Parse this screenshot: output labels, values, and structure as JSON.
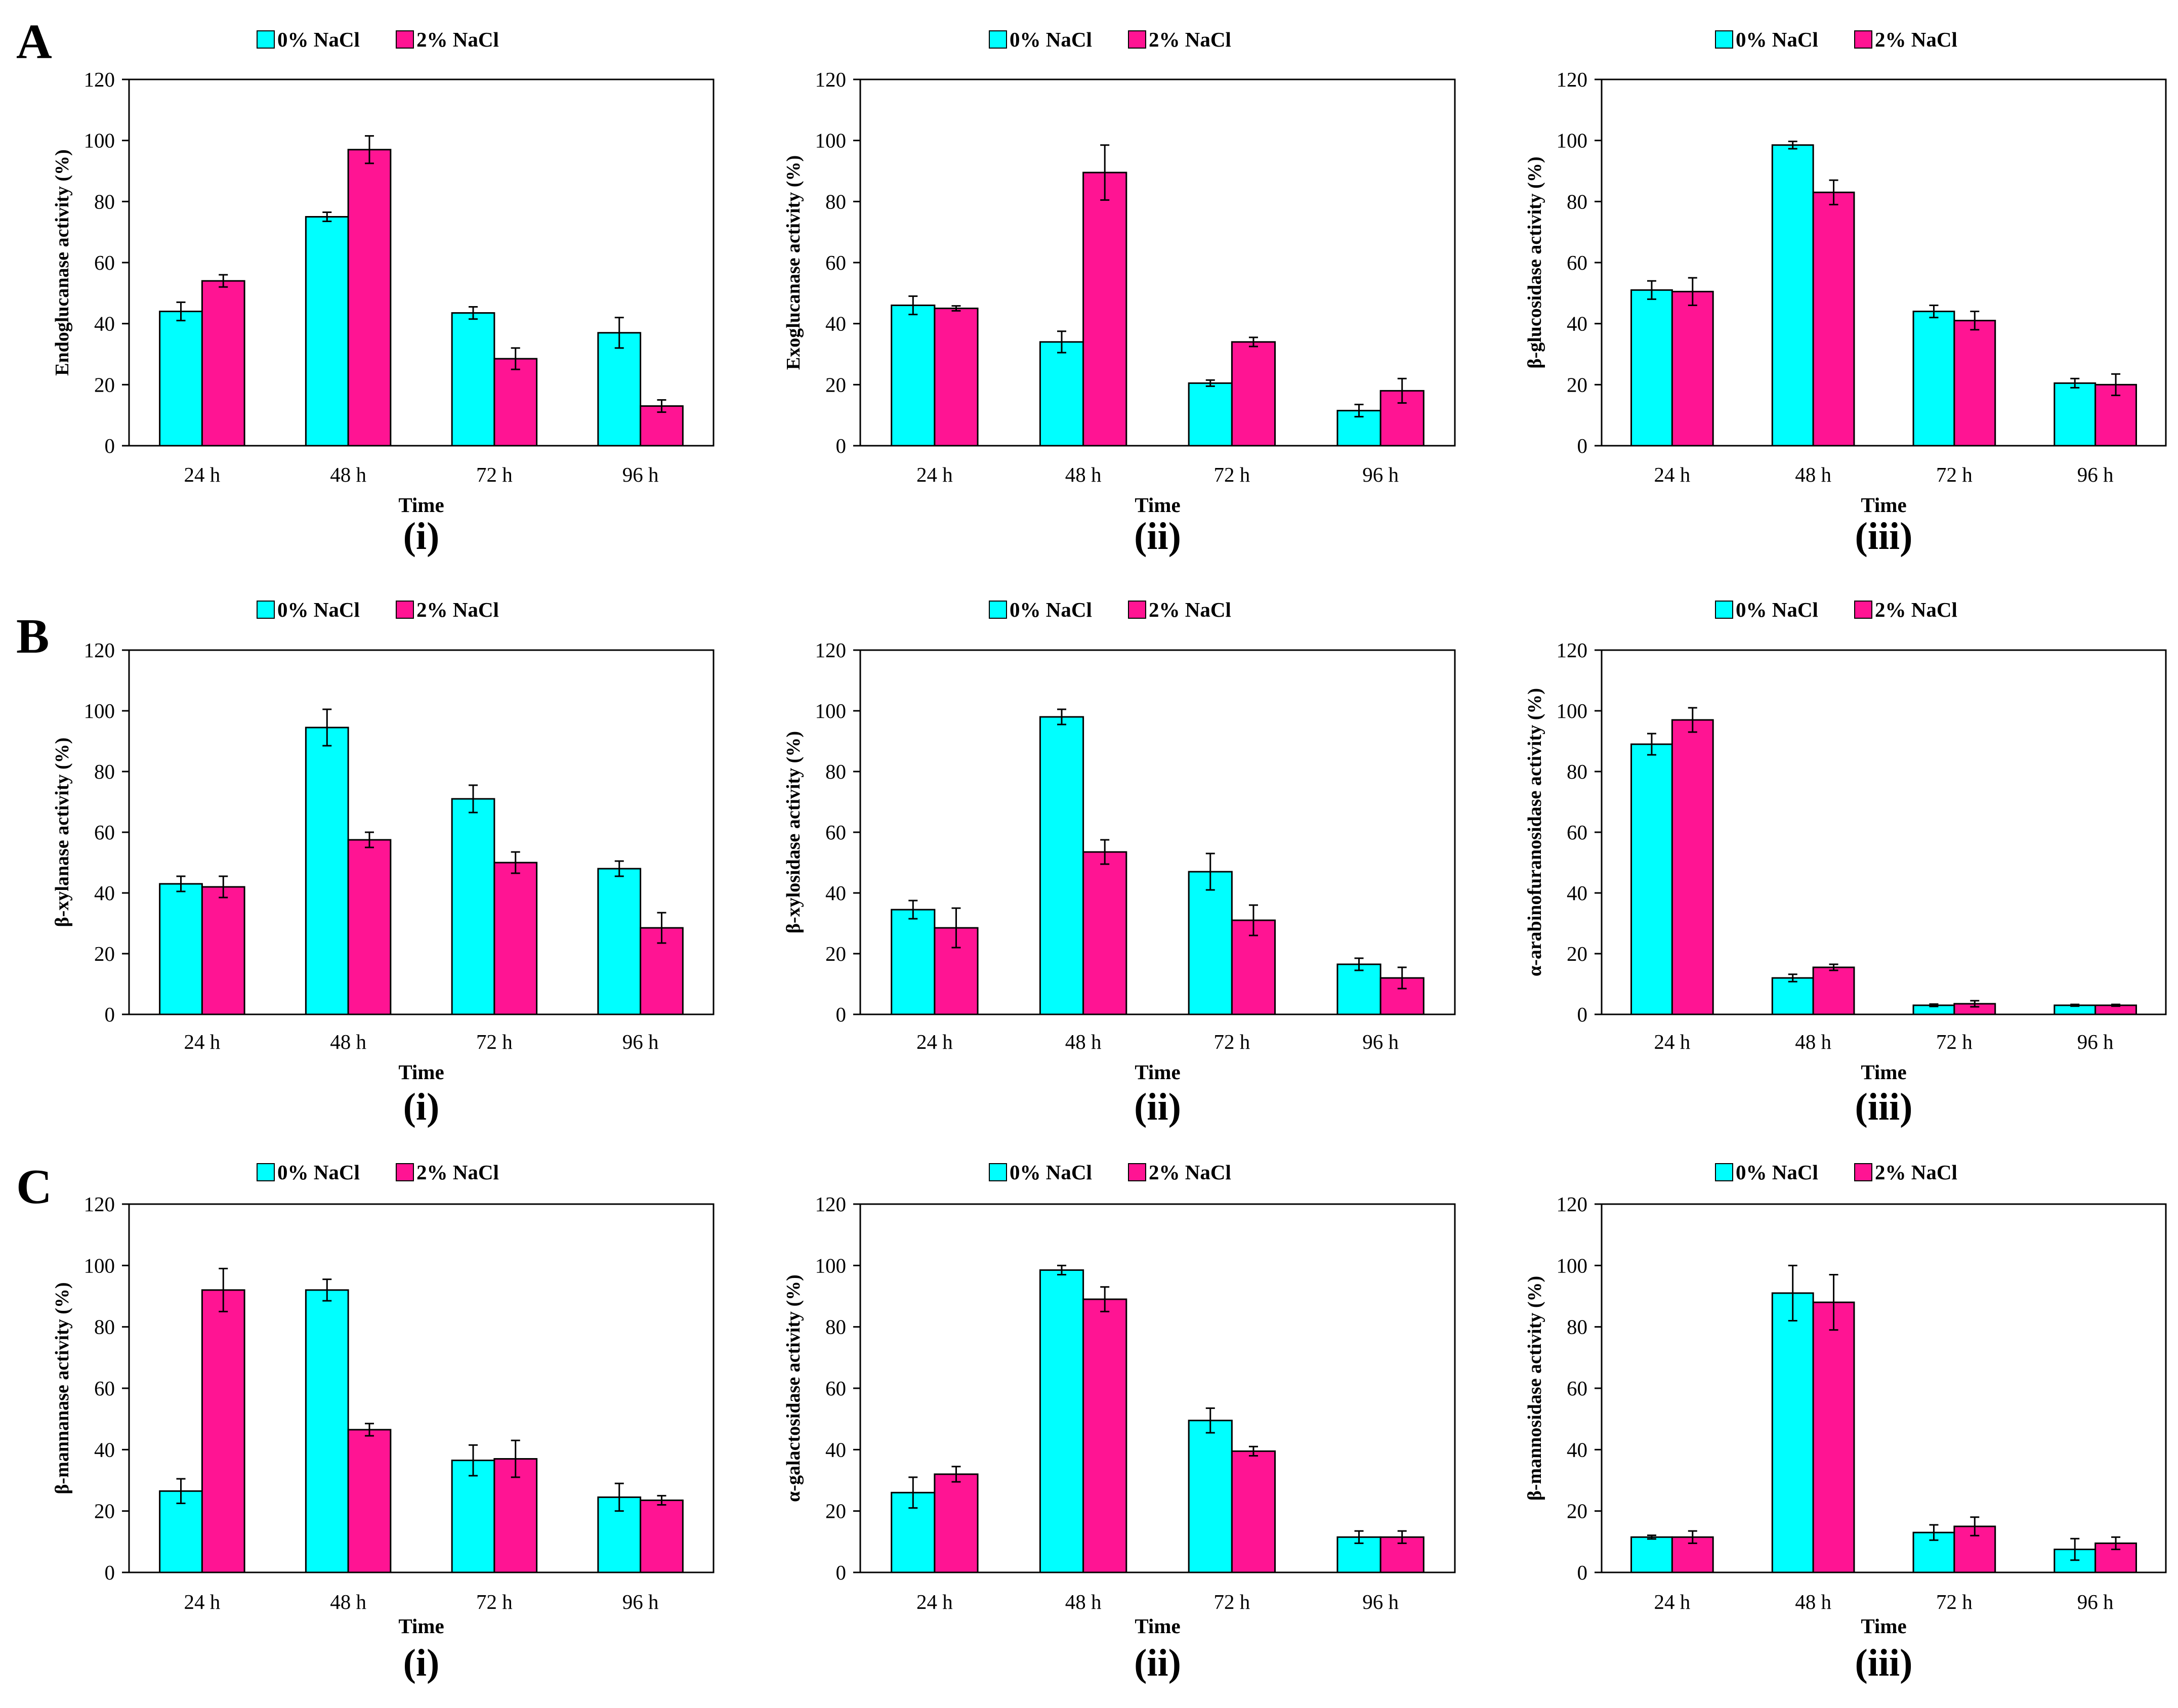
{
  "legend_labels": [
    "0% NaCl",
    "2% NaCl"
  ],
  "colors": {
    "no_salt": "#00FFFF",
    "salt": "#FF1493",
    "bar_outline": "#000000",
    "axis": "#000000"
  },
  "chart_data": [
    {
      "type": "bar",
      "section": "A",
      "panel_label": "(i)",
      "ylabel": "Endoglucanase activity (%)",
      "xlabel": "Time",
      "categories": [
        "24 h",
        "48 h",
        "72 h",
        "96 h"
      ],
      "ylim": [
        0,
        120
      ],
      "yticks": [
        0,
        20,
        40,
        60,
        80,
        100,
        120
      ],
      "series": [
        {
          "name": "0% NaCl",
          "values": [
            44,
            75,
            43.5,
            37
          ],
          "errors": [
            3,
            1.5,
            2,
            5
          ]
        },
        {
          "name": "2% NaCl",
          "values": [
            54,
            97,
            28.5,
            13
          ],
          "errors": [
            2,
            4.5,
            3.5,
            2
          ]
        }
      ]
    },
    {
      "type": "bar",
      "section": "",
      "panel_label": "(ii)",
      "ylabel": "Exoglucanase activity (%)",
      "xlabel": "Time",
      "categories": [
        "24 h",
        "48 h",
        "72 h",
        "96 h"
      ],
      "ylim": [
        0,
        120
      ],
      "yticks": [
        0,
        20,
        40,
        60,
        80,
        100,
        120
      ],
      "series": [
        {
          "name": "0% NaCl",
          "values": [
            46,
            34,
            20.5,
            11.5
          ],
          "errors": [
            3,
            3.5,
            1,
            2
          ]
        },
        {
          "name": "2% NaCl",
          "values": [
            45,
            89.5,
            34,
            18
          ],
          "errors": [
            0.8,
            9,
            1.5,
            4
          ]
        }
      ]
    },
    {
      "type": "bar",
      "section": "",
      "panel_label": "(iii)",
      "ylabel": "β-glucosidase activity (%)",
      "xlabel": "Time",
      "categories": [
        "24 h",
        "48 h",
        "72 h",
        "96 h"
      ],
      "ylim": [
        0,
        120
      ],
      "yticks": [
        0,
        20,
        40,
        60,
        80,
        100,
        120
      ],
      "series": [
        {
          "name": "0% NaCl",
          "values": [
            51,
            98.5,
            44,
            20.5
          ],
          "errors": [
            3,
            1.2,
            2,
            1.5
          ]
        },
        {
          "name": "2% NaCl",
          "values": [
            50.5,
            83,
            41,
            20
          ],
          "errors": [
            4.5,
            4,
            3,
            3.5
          ]
        }
      ]
    },
    {
      "type": "bar",
      "section": "B",
      "panel_label": "(i)",
      "ylabel": "β-xylanase activity (%)",
      "xlabel": "Time",
      "categories": [
        "24 h",
        "48 h",
        "72 h",
        "96 h"
      ],
      "ylim": [
        0,
        120
      ],
      "yticks": [
        0,
        20,
        40,
        60,
        80,
        100,
        120
      ],
      "series": [
        {
          "name": "0% NaCl",
          "values": [
            43,
            94.5,
            71,
            48
          ],
          "errors": [
            2.5,
            6,
            4.5,
            2.5
          ]
        },
        {
          "name": "2% NaCl",
          "values": [
            42,
            57.5,
            50,
            28.5
          ],
          "errors": [
            3.5,
            2.5,
            3.5,
            5
          ]
        }
      ]
    },
    {
      "type": "bar",
      "section": "",
      "panel_label": "(ii)",
      "ylabel": "β-xylosidase activity (%)",
      "xlabel": "Time",
      "categories": [
        "24 h",
        "48 h",
        "72 h",
        "96 h"
      ],
      "ylim": [
        0,
        120
      ],
      "yticks": [
        0,
        20,
        40,
        60,
        80,
        100,
        120
      ],
      "series": [
        {
          "name": "0% NaCl",
          "values": [
            34.5,
            98,
            47,
            16.5
          ],
          "errors": [
            3,
            2.5,
            6,
            2
          ]
        },
        {
          "name": "2% NaCl",
          "values": [
            28.5,
            53.5,
            31,
            12
          ],
          "errors": [
            6.5,
            4,
            5,
            3.5
          ]
        }
      ]
    },
    {
      "type": "bar",
      "section": "",
      "panel_label": "(iii)",
      "ylabel": "α-arabinofuranosidase activity (%)",
      "xlabel": "Time",
      "categories": [
        "24 h",
        "48 h",
        "72 h",
        "96 h"
      ],
      "ylim": [
        0,
        120
      ],
      "yticks": [
        0,
        20,
        40,
        60,
        80,
        100,
        120
      ],
      "series": [
        {
          "name": "0% NaCl",
          "values": [
            89,
            12,
            3,
            3
          ],
          "errors": [
            3.5,
            1.2,
            0.4,
            0.3
          ]
        },
        {
          "name": "2% NaCl",
          "values": [
            97,
            15.5,
            3.5,
            3
          ],
          "errors": [
            4,
            1,
            1,
            0.3
          ]
        }
      ]
    },
    {
      "type": "bar",
      "section": "C",
      "panel_label": "(i)",
      "ylabel": "β-mannanase activity (%)",
      "xlabel": "Time",
      "categories": [
        "24 h",
        "48 h",
        "72 h",
        "96 h"
      ],
      "ylim": [
        0,
        120
      ],
      "yticks": [
        0,
        20,
        40,
        60,
        80,
        100,
        120
      ],
      "series": [
        {
          "name": "0% NaCl",
          "values": [
            26.5,
            92,
            36.5,
            24.5
          ],
          "errors": [
            4,
            3.5,
            5,
            4.5
          ]
        },
        {
          "name": "2% NaCl",
          "values": [
            92,
            46.5,
            37,
            23.5
          ],
          "errors": [
            7,
            2,
            6,
            1.5
          ]
        }
      ]
    },
    {
      "type": "bar",
      "section": "",
      "panel_label": "(ii)",
      "ylabel": "α-galactosidase activity (%)",
      "xlabel": "Time",
      "categories": [
        "24 h",
        "48 h",
        "72 h",
        "96 h"
      ],
      "ylim": [
        0,
        120
      ],
      "yticks": [
        0,
        20,
        40,
        60,
        80,
        100,
        120
      ],
      "series": [
        {
          "name": "0% NaCl",
          "values": [
            26,
            98.5,
            49.5,
            11.5
          ],
          "errors": [
            5,
            1.5,
            4,
            2
          ]
        },
        {
          "name": "2% NaCl",
          "values": [
            32,
            89,
            39.5,
            11.5
          ],
          "errors": [
            2.5,
            4,
            1.5,
            2
          ]
        }
      ]
    },
    {
      "type": "bar",
      "section": "",
      "panel_label": "(iii)",
      "ylabel": "β-mannosidase activity (%)",
      "xlabel": "Time",
      "categories": [
        "24 h",
        "48 h",
        "72 h",
        "96 h"
      ],
      "ylim": [
        0,
        120
      ],
      "yticks": [
        0,
        20,
        40,
        60,
        80,
        100,
        120
      ],
      "series": [
        {
          "name": "0% NaCl",
          "values": [
            11.5,
            91,
            13,
            7.5
          ],
          "errors": [
            0.6,
            9,
            2.5,
            3.5
          ]
        },
        {
          "name": "2% NaCl",
          "values": [
            11.5,
            88,
            15,
            9.5
          ],
          "errors": [
            2,
            9,
            3,
            2
          ]
        }
      ]
    }
  ]
}
